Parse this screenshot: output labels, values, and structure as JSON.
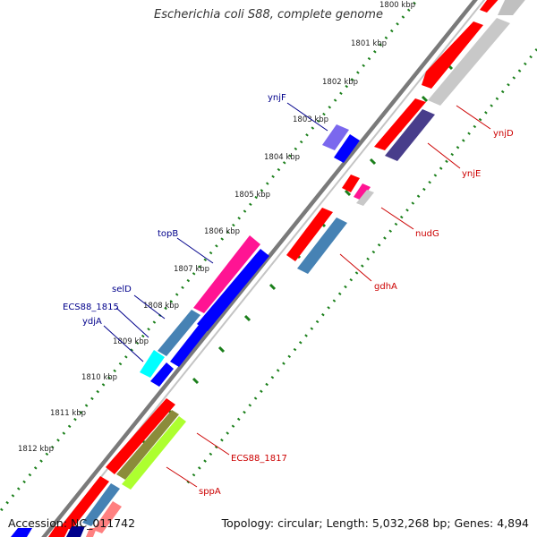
{
  "title": "Escherichia coli S88, complete genome",
  "footer": {
    "accession": "Accession: NC_011742",
    "topology": "Topology: circular; Length: 5,032,268 bp; Genes: 4,894"
  },
  "ticks": [
    "1800 kbp",
    "1801 kbp",
    "1802 kbp",
    "1803 kbp",
    "1804 kbp",
    "1805 kbp",
    "1806 kbp",
    "1807 kbp",
    "1808 kbp",
    "1809 kbp",
    "1810 kbp",
    "1811 kbp",
    "1812 kbp"
  ],
  "colors": {
    "forward_label": "#00008b",
    "reverse_label": "#cc0000",
    "tick_dots": "#1a7f1a",
    "backbone": "#808080"
  },
  "genes": {
    "forward": [
      {
        "label": "ynjF",
        "fill": "#7b68ee"
      },
      {
        "label": "topB",
        "fill": "#ff1493"
      },
      {
        "label": "selD",
        "fill": "#4682b4"
      },
      {
        "label": "ECS88_1815",
        "fill": "#4682b4"
      },
      {
        "label": "ydjA",
        "fill": "#00ffff"
      }
    ],
    "reverse": [
      {
        "label": "ynjD",
        "fill": "#ff0000"
      },
      {
        "label": "ynjE",
        "fill": "#483d8b"
      },
      {
        "label": "nudG",
        "fill": "#ff1493"
      },
      {
        "label": "gdhA",
        "fill": "#4682b4"
      },
      {
        "label": "ECS88_1817",
        "fill": "#ff0000"
      },
      {
        "label": "sppA",
        "fill": "#adff2f"
      }
    ]
  }
}
